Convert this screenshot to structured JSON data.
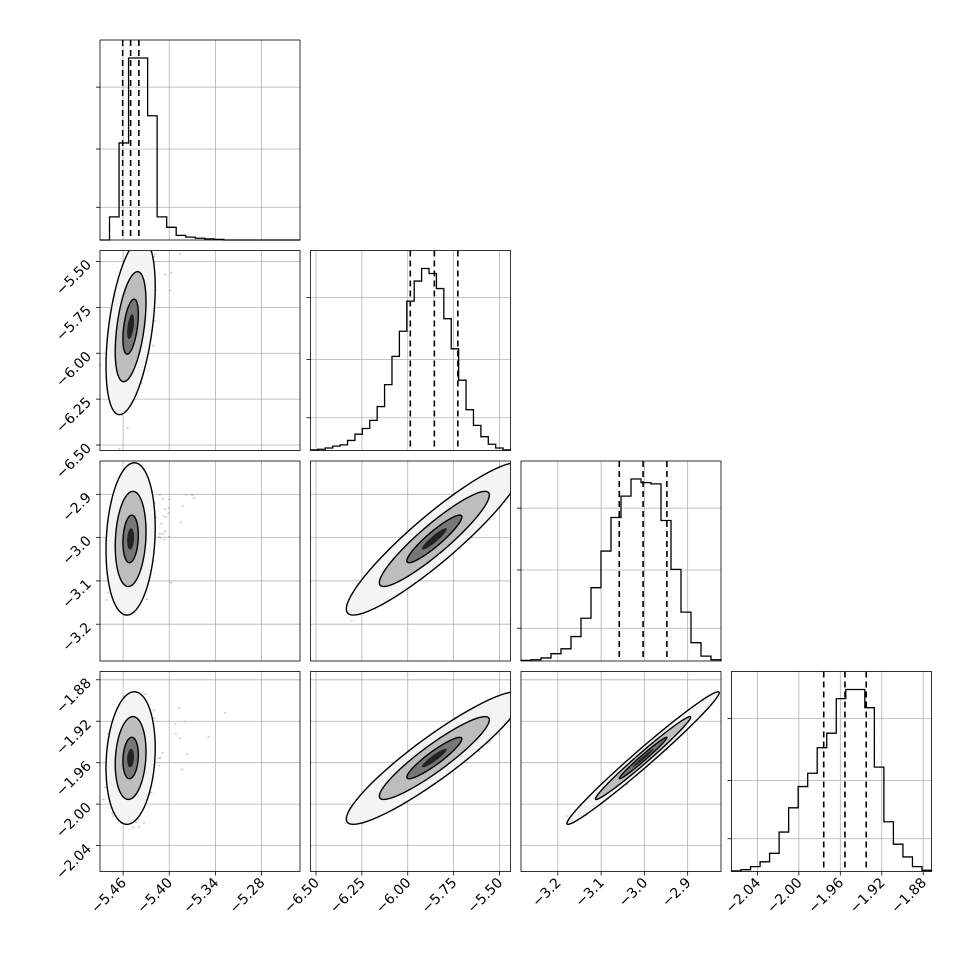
{
  "chart_data": {
    "type": "corner",
    "grid": true,
    "parameters": [
      {
        "range": [
          -5.49,
          -5.23
        ],
        "ticks": [
          -5.46,
          -5.4,
          -5.34,
          -5.28
        ],
        "tick_labels": [
          "−5.46",
          "−5.40",
          "−5.34",
          "−5.28"
        ],
        "quantiles": [
          -5.4605,
          -5.4502,
          -5.4395
        ]
      },
      {
        "range": [
          -6.53,
          -5.44
        ],
        "ticks": [
          -6.5,
          -6.25,
          -6.0,
          -5.75,
          -5.5
        ],
        "tick_labels": [
          "−6.50",
          "−6.25",
          "−6.00",
          "−5.75",
          "−5.50"
        ],
        "quantiles": [
          -5.986,
          -5.855,
          -5.727
        ]
      },
      {
        "range": [
          -3.285,
          -2.823
        ],
        "ticks": [
          -3.2,
          -3.1,
          -3.0,
          -2.9
        ],
        "tick_labels": [
          "−3.2",
          "−3.1",
          "−3.0",
          "−2.9"
        ],
        "quantiles": [
          -3.058,
          -3.003,
          -2.948
        ]
      },
      {
        "range": [
          -2.065,
          -1.872
        ],
        "ticks": [
          -2.04,
          -2.0,
          -1.96,
          -1.92,
          -1.88
        ],
        "tick_labels": [
          "−2.04",
          "−2.00",
          "−1.96",
          "−1.92",
          "−1.88"
        ],
        "quantiles": [
          -1.976,
          -1.9555,
          -1.935
        ]
      }
    ],
    "histograms": [
      [
        0,
        40,
        168,
        315,
        315,
        215,
        40,
        22,
        8,
        5,
        3,
        2,
        1,
        0,
        0,
        0,
        0,
        0,
        0,
        0,
        0
      ],
      [
        1,
        2,
        4,
        7,
        9,
        16,
        26,
        35,
        48,
        70,
        105,
        150,
        190,
        238,
        270,
        290,
        282,
        258,
        210,
        162,
        112,
        65,
        40,
        22,
        10,
        4,
        1
      ],
      [
        1,
        2,
        5,
        12,
        20,
        40,
        70,
        120,
        180,
        235,
        270,
        298,
        292,
        290,
        230,
        150,
        80,
        30,
        8,
        2
      ],
      [
        1,
        3,
        8,
        16,
        30,
        65,
        105,
        140,
        162,
        204,
        228,
        285,
        300,
        300,
        270,
        172,
        82,
        45,
        24,
        8,
        2
      ]
    ],
    "pairs": [
      {
        "x": 0,
        "y": 1,
        "center": [
          -5.4502,
          -5.855
        ],
        "sx": 0.01,
        "sy": 0.15,
        "rho": 0.45,
        "contour_scale": [
          1,
          2,
          3.2
        ],
        "outliers": 40
      },
      {
        "x": 0,
        "y": 2,
        "center": [
          -5.4502,
          -3.003
        ],
        "sx": 0.01,
        "sy": 0.055,
        "rho": 0.15,
        "contour_scale": [
          1,
          2,
          3.2
        ],
        "outliers": 40
      },
      {
        "x": 1,
        "y": 2,
        "center": [
          -5.855,
          -3.003
        ],
        "sx": 0.15,
        "sy": 0.055,
        "rho": 0.92,
        "contour_scale": [
          1,
          2,
          3.2
        ],
        "outliers": 0
      },
      {
        "x": 0,
        "y": 3,
        "center": [
          -5.4502,
          -1.9555
        ],
        "sx": 0.01,
        "sy": 0.02,
        "rho": 0.15,
        "contour_scale": [
          1,
          2,
          3.2
        ],
        "outliers": 40
      },
      {
        "x": 1,
        "y": 3,
        "center": [
          -5.855,
          -1.9555
        ],
        "sx": 0.15,
        "sy": 0.02,
        "rho": 0.92,
        "contour_scale": [
          1,
          2,
          3.2
        ],
        "outliers": 0
      },
      {
        "x": 2,
        "y": 3,
        "center": [
          -3.003,
          -1.9555
        ],
        "sx": 0.055,
        "sy": 0.02,
        "rho": 0.985,
        "contour_scale": [
          1,
          2,
          3.2
        ],
        "outliers": 0
      }
    ]
  }
}
